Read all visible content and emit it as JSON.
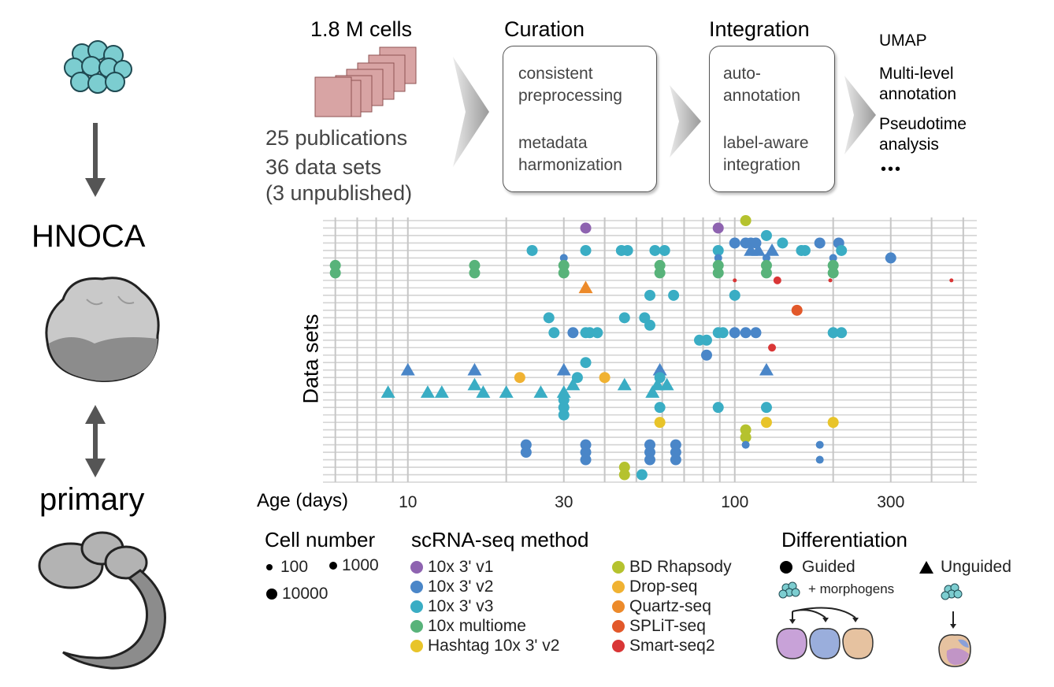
{
  "left": {
    "hnoca_label": "HNOCA",
    "primary_label": "primary"
  },
  "pipeline": {
    "cells_label": "1.8 M cells",
    "publications": "25 publications",
    "datasets_line1": "36 data sets",
    "datasets_line2": "(3 unpublished)",
    "curation_title": "Curation",
    "curation_item1_line1": "consistent",
    "curation_item1_line2": "preprocessing",
    "curation_item2_line1": "metadata",
    "curation_item2_line2": "harmonization",
    "integration_title": "Integration",
    "integration_item1_line1": "auto-",
    "integration_item1_line2": "annotation",
    "integration_item2_line1": "label-aware",
    "integration_item2_line2": "integration",
    "output_umap": "UMAP",
    "output_multi_line1": "Multi-level",
    "output_multi_line2": "annotation",
    "output_pseudo_line1": "Pseudotime",
    "output_pseudo_line2": "analysis",
    "output_more": "•••"
  },
  "chart_data": {
    "type": "scatter",
    "ylabel": "Data sets",
    "xlabel": "Age (days)",
    "x_scale": "log",
    "xlim": [
      5.5,
      550
    ],
    "x_ticks": [
      10,
      30,
      100,
      300
    ],
    "x_tick_labels": [
      "10",
      "30",
      "100",
      "300"
    ],
    "n_rows": 36,
    "colors": {
      "10x 3' v1": "#8e63b0",
      "10x 3' v2": "#4a86c8",
      "10x 3' v3": "#3aadc4",
      "10x multiome": "#58b37a",
      "Hashtag 10x 3' v2": "#e8c42a",
      "BD Rhapsody": "#b5c22e",
      "Drop-seq": "#f0b232",
      "Quartz-seq": "#ec8a2a",
      "SPLiT-seq": "#e2582a",
      "Smart-seq2": "#d93636"
    },
    "points": [
      {
        "row": 0,
        "age": 108,
        "method": "BD Rhapsody",
        "shape": "circle",
        "size": "large"
      },
      {
        "row": 1,
        "age": 35,
        "method": "10x 3' v1",
        "shape": "circle",
        "size": "large"
      },
      {
        "row": 1,
        "age": 89,
        "method": "10x 3' v1",
        "shape": "circle",
        "size": "large"
      },
      {
        "row": 2,
        "age": 125,
        "method": "10x 3' v3",
        "shape": "circle",
        "size": "large"
      },
      {
        "row": 3,
        "age": 100,
        "method": "10x 3' v2",
        "shape": "circle",
        "size": "large"
      },
      {
        "row": 3,
        "age": 108,
        "method": "10x 3' v2",
        "shape": "circle",
        "size": "large"
      },
      {
        "row": 3,
        "age": 112,
        "method": "10x 3' v2",
        "shape": "circle",
        "size": "large"
      },
      {
        "row": 3,
        "age": 116,
        "method": "10x 3' v2",
        "shape": "circle",
        "size": "large"
      },
      {
        "row": 3,
        "age": 182,
        "method": "10x 3' v2",
        "shape": "circle",
        "size": "large"
      },
      {
        "row": 3,
        "age": 208,
        "method": "10x 3' v2",
        "shape": "circle",
        "size": "large"
      },
      {
        "row": 3,
        "age": 140,
        "method": "10x 3' v3",
        "shape": "circle",
        "size": "large"
      },
      {
        "row": 4,
        "age": 24,
        "method": "10x 3' v3",
        "shape": "circle",
        "size": "large"
      },
      {
        "row": 4,
        "age": 35,
        "method": "10x 3' v3",
        "shape": "circle",
        "size": "large"
      },
      {
        "row": 4,
        "age": 45,
        "method": "10x 3' v3",
        "shape": "circle",
        "size": "large"
      },
      {
        "row": 4,
        "age": 47,
        "method": "10x 3' v3",
        "shape": "circle",
        "size": "large"
      },
      {
        "row": 4,
        "age": 57,
        "method": "10x 3' v3",
        "shape": "circle",
        "size": "large"
      },
      {
        "row": 4,
        "age": 61,
        "method": "10x 3' v3",
        "shape": "circle",
        "size": "large"
      },
      {
        "row": 4,
        "age": 89,
        "method": "10x 3' v3",
        "shape": "circle",
        "size": "large"
      },
      {
        "row": 4,
        "age": 160,
        "method": "10x 3' v3",
        "shape": "circle",
        "size": "large"
      },
      {
        "row": 4,
        "age": 164,
        "method": "10x 3' v3",
        "shape": "circle",
        "size": "large"
      },
      {
        "row": 4,
        "age": 212,
        "method": "10x 3' v3",
        "shape": "circle",
        "size": "large"
      },
      {
        "row": 4,
        "age": 112,
        "method": "10x 3' v2",
        "shape": "triangle",
        "size": "large"
      },
      {
        "row": 4,
        "age": 118,
        "method": "10x 3' v2",
        "shape": "triangle",
        "size": "large"
      },
      {
        "row": 4,
        "age": 130,
        "method": "10x 3' v2",
        "shape": "triangle",
        "size": "large"
      },
      {
        "row": 5,
        "age": 30,
        "method": "10x 3' v2",
        "shape": "circle",
        "size": "medium"
      },
      {
        "row": 5,
        "age": 89,
        "method": "10x 3' v2",
        "shape": "circle",
        "size": "medium"
      },
      {
        "row": 5,
        "age": 125,
        "method": "10x 3' v2",
        "shape": "circle",
        "size": "medium"
      },
      {
        "row": 5,
        "age": 200,
        "method": "10x 3' v2",
        "shape": "circle",
        "size": "medium"
      },
      {
        "row": 5,
        "age": 300,
        "method": "10x 3' v2",
        "shape": "circle",
        "size": "large"
      },
      {
        "row": 6,
        "age": 6,
        "method": "10x multiome",
        "shape": "circle",
        "size": "large"
      },
      {
        "row": 6,
        "age": 16,
        "method": "10x multiome",
        "shape": "circle",
        "size": "large"
      },
      {
        "row": 6,
        "age": 30,
        "method": "10x multiome",
        "shape": "circle",
        "size": "large"
      },
      {
        "row": 6,
        "age": 59,
        "method": "10x multiome",
        "shape": "circle",
        "size": "large"
      },
      {
        "row": 6,
        "age": 89,
        "method": "10x multiome",
        "shape": "circle",
        "size": "large"
      },
      {
        "row": 6,
        "age": 125,
        "method": "10x multiome",
        "shape": "circle",
        "size": "large"
      },
      {
        "row": 6,
        "age": 200,
        "method": "10x multiome",
        "shape": "circle",
        "size": "large"
      },
      {
        "row": 7,
        "age": 6,
        "method": "10x multiome",
        "shape": "circle",
        "size": "large"
      },
      {
        "row": 7,
        "age": 16,
        "method": "10x multiome",
        "shape": "circle",
        "size": "large"
      },
      {
        "row": 7,
        "age": 30,
        "method": "10x multiome",
        "shape": "circle",
        "size": "large"
      },
      {
        "row": 7,
        "age": 59,
        "method": "10x multiome",
        "shape": "circle",
        "size": "large"
      },
      {
        "row": 7,
        "age": 89,
        "method": "10x multiome",
        "shape": "circle",
        "size": "large"
      },
      {
        "row": 7,
        "age": 125,
        "method": "10x multiome",
        "shape": "circle",
        "size": "large"
      },
      {
        "row": 7,
        "age": 200,
        "method": "10x multiome",
        "shape": "circle",
        "size": "large"
      },
      {
        "row": 8,
        "age": 100,
        "method": "Smart-seq2",
        "shape": "circle",
        "size": "small"
      },
      {
        "row": 8,
        "age": 135,
        "method": "Smart-seq2",
        "shape": "circle",
        "size": "medium"
      },
      {
        "row": 8,
        "age": 196,
        "method": "Smart-seq2",
        "shape": "circle",
        "size": "small"
      },
      {
        "row": 8,
        "age": 460,
        "method": "Smart-seq2",
        "shape": "circle",
        "size": "small"
      },
      {
        "row": 9,
        "age": 35,
        "method": "Quartz-seq",
        "shape": "triangle",
        "size": "large"
      },
      {
        "row": 10,
        "age": 55,
        "method": "10x 3' v3",
        "shape": "circle",
        "size": "large"
      },
      {
        "row": 10,
        "age": 65,
        "method": "10x 3' v3",
        "shape": "circle",
        "size": "large"
      },
      {
        "row": 10,
        "age": 100,
        "method": "10x 3' v3",
        "shape": "circle",
        "size": "large"
      },
      {
        "row": 12,
        "age": 155,
        "method": "SPLiT-seq",
        "shape": "circle",
        "size": "large"
      },
      {
        "row": 13,
        "age": 27,
        "method": "10x 3' v3",
        "shape": "circle",
        "size": "large"
      },
      {
        "row": 13,
        "age": 46,
        "method": "10x 3' v3",
        "shape": "circle",
        "size": "large"
      },
      {
        "row": 13,
        "age": 53,
        "method": "10x 3' v3",
        "shape": "circle",
        "size": "large"
      },
      {
        "row": 14,
        "age": 55,
        "method": "10x 3' v3",
        "shape": "circle",
        "size": "large"
      },
      {
        "row": 15,
        "age": 28,
        "method": "10x 3' v3",
        "shape": "circle",
        "size": "large"
      },
      {
        "row": 15,
        "age": 35,
        "method": "10x 3' v3",
        "shape": "circle",
        "size": "large"
      },
      {
        "row": 15,
        "age": 36,
        "method": "10x 3' v3",
        "shape": "circle",
        "size": "large"
      },
      {
        "row": 15,
        "age": 38,
        "method": "10x 3' v3",
        "shape": "circle",
        "size": "large"
      },
      {
        "row": 15,
        "age": 89,
        "method": "10x 3' v3",
        "shape": "circle",
        "size": "large"
      },
      {
        "row": 15,
        "age": 92,
        "method": "10x 3' v3",
        "shape": "circle",
        "size": "large"
      },
      {
        "row": 15,
        "age": 200,
        "method": "10x 3' v3",
        "shape": "circle",
        "size": "large"
      },
      {
        "row": 15,
        "age": 212,
        "method": "10x 3' v3",
        "shape": "circle",
        "size": "large"
      },
      {
        "row": 15,
        "age": 32,
        "method": "10x 3' v2",
        "shape": "circle",
        "size": "large"
      },
      {
        "row": 15,
        "age": 100,
        "method": "10x 3' v2",
        "shape": "circle",
        "size": "large"
      },
      {
        "row": 15,
        "age": 108,
        "method": "10x 3' v2",
        "shape": "circle",
        "size": "large"
      },
      {
        "row": 15,
        "age": 116,
        "method": "10x 3' v2",
        "shape": "circle",
        "size": "large"
      },
      {
        "row": 16,
        "age": 78,
        "method": "10x 3' v3",
        "shape": "circle",
        "size": "large"
      },
      {
        "row": 16,
        "age": 82,
        "method": "10x 3' v3",
        "shape": "circle",
        "size": "large"
      },
      {
        "row": 17,
        "age": 130,
        "method": "Smart-seq2",
        "shape": "circle",
        "size": "medium"
      },
      {
        "row": 18,
        "age": 82,
        "method": "10x 3' v2",
        "shape": "circle",
        "size": "large"
      },
      {
        "row": 19,
        "age": 35,
        "method": "10x 3' v3",
        "shape": "circle",
        "size": "large"
      },
      {
        "row": 20,
        "age": 10,
        "method": "10x 3' v2",
        "shape": "triangle",
        "size": "large"
      },
      {
        "row": 20,
        "age": 16,
        "method": "10x 3' v2",
        "shape": "triangle",
        "size": "large"
      },
      {
        "row": 20,
        "age": 30,
        "method": "10x 3' v2",
        "shape": "triangle",
        "size": "large"
      },
      {
        "row": 20,
        "age": 59,
        "method": "10x 3' v2",
        "shape": "triangle",
        "size": "large"
      },
      {
        "row": 20,
        "age": 125,
        "method": "10x 3' v2",
        "shape": "triangle",
        "size": "large"
      },
      {
        "row": 21,
        "age": 22,
        "method": "Drop-seq",
        "shape": "circle",
        "size": "large"
      },
      {
        "row": 21,
        "age": 40,
        "method": "Drop-seq",
        "shape": "circle",
        "size": "large"
      },
      {
        "row": 21,
        "age": 33,
        "method": "10x 3' v3",
        "shape": "circle",
        "size": "large"
      },
      {
        "row": 21,
        "age": 59,
        "method": "10x 3' v3",
        "shape": "circle",
        "size": "large"
      },
      {
        "row": 22,
        "age": 16,
        "method": "10x 3' v3",
        "shape": "triangle",
        "size": "large"
      },
      {
        "row": 22,
        "age": 32,
        "method": "10x 3' v3",
        "shape": "triangle",
        "size": "large"
      },
      {
        "row": 22,
        "age": 46,
        "method": "10x 3' v3",
        "shape": "triangle",
        "size": "large"
      },
      {
        "row": 22,
        "age": 58,
        "method": "10x 3' v3",
        "shape": "triangle",
        "size": "large"
      },
      {
        "row": 22,
        "age": 62,
        "method": "10x 3' v3",
        "shape": "triangle",
        "size": "large"
      },
      {
        "row": 23,
        "age": 8.7,
        "method": "10x 3' v3",
        "shape": "triangle",
        "size": "large"
      },
      {
        "row": 23,
        "age": 11.5,
        "method": "10x 3' v3",
        "shape": "triangle",
        "size": "large"
      },
      {
        "row": 23,
        "age": 12.7,
        "method": "10x 3' v3",
        "shape": "triangle",
        "size": "large"
      },
      {
        "row": 23,
        "age": 17,
        "method": "10x 3' v3",
        "shape": "triangle",
        "size": "large"
      },
      {
        "row": 23,
        "age": 20,
        "method": "10x 3' v3",
        "shape": "triangle",
        "size": "large"
      },
      {
        "row": 23,
        "age": 25.5,
        "method": "10x 3' v3",
        "shape": "triangle",
        "size": "large"
      },
      {
        "row": 23,
        "age": 30,
        "method": "10x 3' v3",
        "shape": "triangle",
        "size": "large"
      },
      {
        "row": 23,
        "age": 56,
        "method": "10x 3' v3",
        "shape": "triangle",
        "size": "large"
      },
      {
        "row": 24,
        "age": 30,
        "method": "10x 3' v3",
        "shape": "circle",
        "size": "large"
      },
      {
        "row": 25,
        "age": 30,
        "method": "10x 3' v3",
        "shape": "circle",
        "size": "large"
      },
      {
        "row": 25,
        "age": 59,
        "method": "10x 3' v3",
        "shape": "circle",
        "size": "large"
      },
      {
        "row": 25,
        "age": 89,
        "method": "10x 3' v3",
        "shape": "circle",
        "size": "large"
      },
      {
        "row": 25,
        "age": 125,
        "method": "10x 3' v3",
        "shape": "circle",
        "size": "large"
      },
      {
        "row": 26,
        "age": 30,
        "method": "10x 3' v3",
        "shape": "circle",
        "size": "large"
      },
      {
        "row": 27,
        "age": 59,
        "method": "Hashtag 10x 3' v2",
        "shape": "circle",
        "size": "large"
      },
      {
        "row": 27,
        "age": 125,
        "method": "Hashtag 10x 3' v2",
        "shape": "circle",
        "size": "large"
      },
      {
        "row": 27,
        "age": 200,
        "method": "Hashtag 10x 3' v2",
        "shape": "circle",
        "size": "large"
      },
      {
        "row": 28,
        "age": 108,
        "method": "BD Rhapsody",
        "shape": "circle",
        "size": "large"
      },
      {
        "row": 29,
        "age": 108,
        "method": "BD Rhapsody",
        "shape": "circle",
        "size": "large"
      },
      {
        "row": 30,
        "age": 108,
        "method": "10x 3' v2",
        "shape": "circle",
        "size": "medium"
      },
      {
        "row": 30,
        "age": 182,
        "method": "10x 3' v2",
        "shape": "circle",
        "size": "medium"
      },
      {
        "row": 30,
        "age": 23,
        "method": "10x 3' v2",
        "shape": "circle",
        "size": "large"
      },
      {
        "row": 30,
        "age": 35,
        "method": "10x 3' v2",
        "shape": "circle",
        "size": "large"
      },
      {
        "row": 30,
        "age": 55,
        "method": "10x 3' v2",
        "shape": "circle",
        "size": "large"
      },
      {
        "row": 30,
        "age": 66,
        "method": "10x 3' v2",
        "shape": "circle",
        "size": "large"
      },
      {
        "row": 31,
        "age": 23,
        "method": "10x 3' v2",
        "shape": "circle",
        "size": "large"
      },
      {
        "row": 31,
        "age": 35,
        "method": "10x 3' v2",
        "shape": "circle",
        "size": "large"
      },
      {
        "row": 31,
        "age": 55,
        "method": "10x 3' v2",
        "shape": "circle",
        "size": "large"
      },
      {
        "row": 31,
        "age": 66,
        "method": "10x 3' v2",
        "shape": "circle",
        "size": "large"
      },
      {
        "row": 32,
        "age": 35,
        "method": "10x 3' v2",
        "shape": "circle",
        "size": "large"
      },
      {
        "row": 32,
        "age": 55,
        "method": "10x 3' v2",
        "shape": "circle",
        "size": "large"
      },
      {
        "row": 32,
        "age": 66,
        "method": "10x 3' v2",
        "shape": "circle",
        "size": "large"
      },
      {
        "row": 32,
        "age": 182,
        "method": "10x 3' v2",
        "shape": "circle",
        "size": "medium"
      },
      {
        "row": 33,
        "age": 46,
        "method": "BD Rhapsody",
        "shape": "circle",
        "size": "large"
      },
      {
        "row": 34,
        "age": 46,
        "method": "BD Rhapsody",
        "shape": "circle",
        "size": "large"
      },
      {
        "row": 34,
        "age": 52,
        "method": "10x 3' v3",
        "shape": "circle",
        "size": "large"
      }
    ]
  },
  "legend": {
    "cell_number_title": "Cell number",
    "size_100": "100",
    "size_1000": "1000",
    "size_10000": "10000",
    "method_title": "scRNA-seq method",
    "methods_col1": [
      {
        "label": "10x 3' v1",
        "color": "#8e63b0"
      },
      {
        "label": "10x 3' v2",
        "color": "#4a86c8"
      },
      {
        "label": "10x 3' v3",
        "color": "#3aadc4"
      },
      {
        "label": "10x multiome",
        "color": "#58b37a"
      },
      {
        "label": "Hashtag 10x 3' v2",
        "color": "#e8c42a"
      }
    ],
    "methods_col2": [
      {
        "label": "BD Rhapsody",
        "color": "#b5c22e"
      },
      {
        "label": "Drop-seq",
        "color": "#f0b232"
      },
      {
        "label": "Quartz-seq",
        "color": "#ec8a2a"
      },
      {
        "label": "SPLiT-seq",
        "color": "#e2582a"
      },
      {
        "label": "Smart-seq2",
        "color": "#d93636"
      }
    ],
    "diff_title": "Differentiation",
    "guided": "Guided",
    "unguided": "Unguided",
    "morphogens": "+ morphogens"
  }
}
